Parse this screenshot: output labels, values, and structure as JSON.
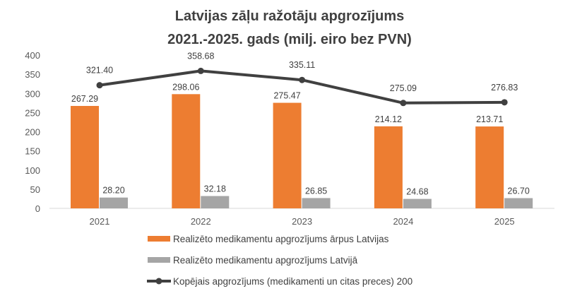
{
  "chart_data": {
    "type": "bar",
    "title_line1": "Latvijas zāļu ražotāju apgrozījums",
    "title_line2": "2021.-2025. gads (milj. eiro bez PVN)",
    "categories": [
      "2021",
      "2022",
      "2023",
      "2024",
      "2025"
    ],
    "ylim": [
      0,
      400
    ],
    "yticks": [
      "0",
      "50",
      "100",
      "150",
      "200",
      "250",
      "300",
      "350",
      "400"
    ],
    "grid": false,
    "legend_position": "bottom",
    "series": [
      {
        "name": "Realizēto medikamentu apgrozījums ārpus Latvijas",
        "type": "bar",
        "color": "#ED7D31",
        "values": [
          267.29,
          298.06,
          275.47,
          214.12,
          213.71
        ],
        "labels": [
          "267.29",
          "298.06",
          "275.47",
          "214.12",
          "213.71"
        ]
      },
      {
        "name": "Realizēto medikamentu apgrozījums Latvijā",
        "type": "bar",
        "color": "#A5A5A5",
        "values": [
          28.2,
          32.18,
          26.85,
          24.68,
          26.7
        ],
        "labels": [
          "28.20",
          "32.18",
          "26.85",
          "24.68",
          "26.70"
        ]
      },
      {
        "name": "Kopējais apgrozījums (medikamenti un citas preces) 200",
        "type": "line",
        "color": "#404040",
        "values": [
          321.4,
          358.68,
          335.11,
          275.09,
          276.83
        ],
        "labels": [
          "321.40",
          "358.68",
          "335.11",
          "275.09",
          "276.83"
        ]
      }
    ]
  }
}
